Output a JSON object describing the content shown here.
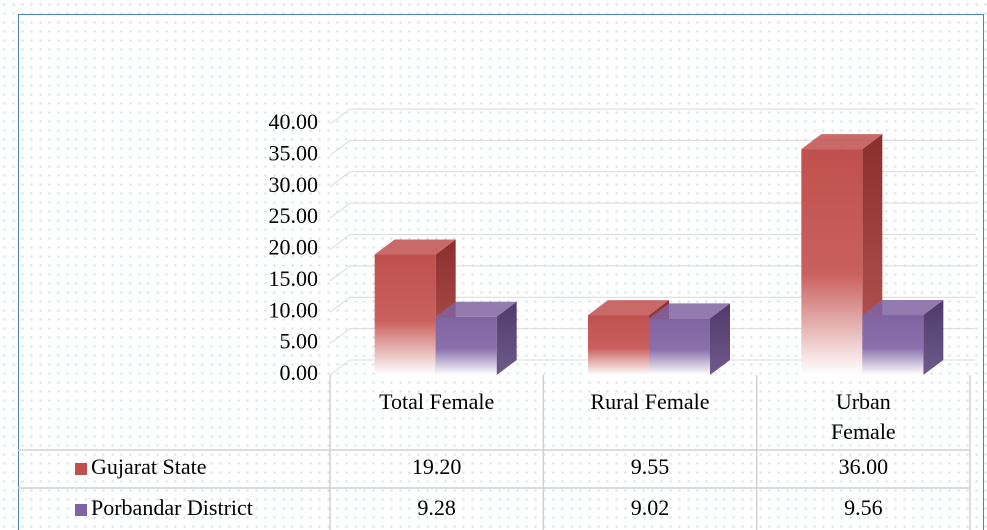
{
  "chart_data": {
    "type": "bar3d",
    "categories": [
      "Total Female",
      "Rural Female",
      "Urban Female"
    ],
    "series": [
      {
        "name": "Gujarat State",
        "color": "#c0504d",
        "values": [
          19.2,
          9.55,
          36.0
        ],
        "value_labels": [
          "19.20",
          "9.55",
          "36.00"
        ]
      },
      {
        "name": "Porbandar District",
        "color": "#8064a2",
        "values": [
          9.28,
          9.02,
          9.56
        ],
        "value_labels": [
          "9.28",
          "9.02",
          "9.56"
        ]
      }
    ],
    "ylim": [
      0,
      40
    ],
    "yticks": [
      {
        "value": 0,
        "label": "0.00"
      },
      {
        "value": 5,
        "label": "5.00"
      },
      {
        "value": 10,
        "label": "10.00"
      },
      {
        "value": 15,
        "label": "15.00"
      },
      {
        "value": 20,
        "label": "20.00"
      },
      {
        "value": 25,
        "label": "25.00"
      },
      {
        "value": 30,
        "label": "30.00"
      },
      {
        "value": 35,
        "label": "35.00"
      },
      {
        "value": 40,
        "label": "40.00"
      }
    ],
    "grid": true
  }
}
